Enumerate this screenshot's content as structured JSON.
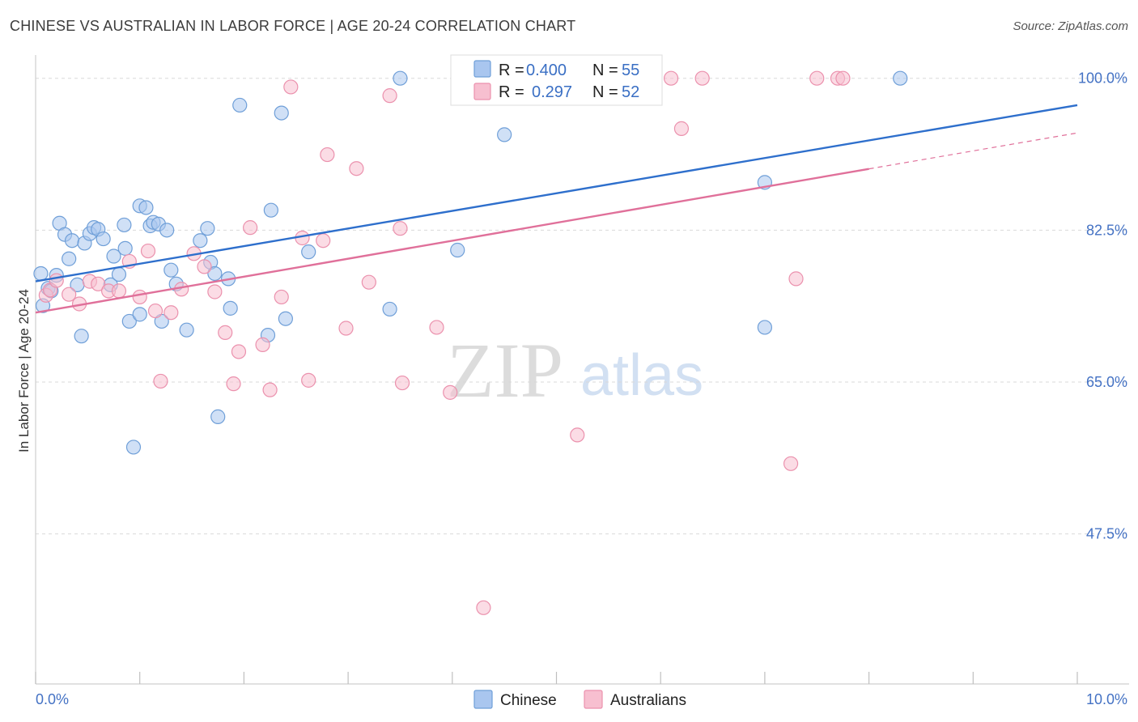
{
  "header": {
    "title": "CHINESE VS AUSTRALIAN IN LABOR FORCE | AGE 20-24 CORRELATION CHART",
    "source": "Source: ZipAtlas.com"
  },
  "watermark": {
    "part1": "ZIP",
    "part2": "atlas"
  },
  "legend": {
    "r_label": "R =",
    "n_label": "N =",
    "rows": [
      {
        "r": "0.400",
        "n": "55"
      },
      {
        "r": "0.297",
        "n": "52"
      }
    ]
  },
  "colors": {
    "chinese_fill": "#a9c6ef",
    "chinese_stroke": "#6f9fd8",
    "chinese_line": "#2e6fcc",
    "australian_fill": "#f7bfd0",
    "australian_stroke": "#eb91ad",
    "australian_line": "#e0709a",
    "grid": "#d9d9d9",
    "tick_text": "#4472c4"
  },
  "chart_data": {
    "type": "scatter",
    "title": "CHINESE VS AUSTRALIAN IN LABOR FORCE | AGE 20-24 CORRELATION CHART",
    "xlabel": "",
    "ylabel": "In Labor Force | Age 20-24",
    "xlim": [
      0,
      10
    ],
    "ylim": [
      32.5,
      101.5
    ],
    "x_tick_labels": [
      "0.0%",
      "10.0%"
    ],
    "y_ticks": [
      47.5,
      65.0,
      82.5,
      100.0
    ],
    "y_tick_labels": [
      "47.5%",
      "65.0%",
      "82.5%",
      "100.0%"
    ],
    "grid": true,
    "legend_position": "top-center",
    "series": [
      {
        "name": "Chinese",
        "r": 0.4,
        "n": 55,
        "trend": {
          "x0": 0.0,
          "y0": 76.6,
          "x1": 10.0,
          "y1": 96.9,
          "dash_from": null
        },
        "points": [
          [
            0.05,
            77.5
          ],
          [
            0.07,
            73.8
          ],
          [
            0.12,
            75.8
          ],
          [
            0.15,
            75.5
          ],
          [
            0.2,
            77.3
          ],
          [
            0.23,
            83.3
          ],
          [
            0.28,
            82.0
          ],
          [
            0.32,
            79.2
          ],
          [
            0.35,
            81.3
          ],
          [
            0.4,
            76.2
          ],
          [
            0.44,
            70.3
          ],
          [
            0.47,
            81.0
          ],
          [
            0.52,
            82.1
          ],
          [
            0.56,
            82.8
          ],
          [
            0.6,
            82.6
          ],
          [
            0.65,
            81.5
          ],
          [
            0.72,
            76.2
          ],
          [
            0.75,
            79.5
          ],
          [
            0.8,
            77.4
          ],
          [
            0.85,
            83.1
          ],
          [
            0.86,
            80.4
          ],
          [
            0.9,
            72.0
          ],
          [
            0.94,
            57.5
          ],
          [
            1.0,
            72.8
          ],
          [
            1.0,
            85.3
          ],
          [
            1.06,
            85.1
          ],
          [
            1.1,
            83.0
          ],
          [
            1.13,
            83.4
          ],
          [
            1.18,
            83.2
          ],
          [
            1.21,
            72.0
          ],
          [
            1.26,
            82.5
          ],
          [
            1.3,
            77.9
          ],
          [
            1.35,
            76.3
          ],
          [
            1.45,
            71.0
          ],
          [
            1.58,
            81.3
          ],
          [
            1.65,
            82.7
          ],
          [
            1.68,
            78.8
          ],
          [
            1.72,
            77.5
          ],
          [
            1.75,
            61.0
          ],
          [
            1.85,
            76.9
          ],
          [
            1.87,
            73.5
          ],
          [
            1.96,
            96.9
          ],
          [
            2.23,
            70.4
          ],
          [
            2.26,
            84.8
          ],
          [
            2.36,
            96.0
          ],
          [
            2.4,
            72.3
          ],
          [
            2.62,
            80.0
          ],
          [
            3.4,
            73.4
          ],
          [
            3.5,
            100.0
          ],
          [
            4.1,
            100.0
          ],
          [
            4.05,
            80.2
          ],
          [
            4.5,
            93.5
          ],
          [
            7.0,
            71.3
          ],
          [
            7.0,
            88.0
          ],
          [
            8.3,
            100.0
          ]
        ]
      },
      {
        "name": "Australians",
        "r": 0.297,
        "n": 52,
        "trend": {
          "x0": 0.0,
          "y0": 73.0,
          "x1": 10.0,
          "y1": 93.7,
          "dash_from": 8.0
        },
        "points": [
          [
            0.1,
            75.0
          ],
          [
            0.14,
            75.6
          ],
          [
            0.2,
            76.7
          ],
          [
            0.32,
            75.1
          ],
          [
            0.42,
            74.0
          ],
          [
            0.52,
            76.6
          ],
          [
            0.6,
            76.3
          ],
          [
            0.7,
            75.5
          ],
          [
            0.8,
            75.5
          ],
          [
            0.9,
            78.9
          ],
          [
            1.0,
            74.8
          ],
          [
            1.08,
            80.1
          ],
          [
            1.15,
            73.2
          ],
          [
            1.2,
            65.1
          ],
          [
            1.3,
            73.0
          ],
          [
            1.4,
            75.7
          ],
          [
            1.52,
            79.8
          ],
          [
            1.62,
            78.3
          ],
          [
            1.72,
            75.4
          ],
          [
            1.82,
            70.7
          ],
          [
            1.9,
            64.8
          ],
          [
            1.95,
            68.5
          ],
          [
            2.06,
            82.8
          ],
          [
            2.18,
            69.3
          ],
          [
            2.25,
            64.1
          ],
          [
            2.36,
            74.8
          ],
          [
            2.45,
            99.0
          ],
          [
            2.56,
            81.6
          ],
          [
            2.62,
            65.2
          ],
          [
            2.76,
            81.3
          ],
          [
            2.8,
            91.2
          ],
          [
            2.98,
            71.2
          ],
          [
            3.08,
            89.6
          ],
          [
            3.2,
            76.5
          ],
          [
            3.4,
            98.0
          ],
          [
            3.5,
            82.7
          ],
          [
            3.52,
            64.9
          ],
          [
            3.85,
            71.3
          ],
          [
            3.98,
            63.8
          ],
          [
            4.3,
            39.0
          ],
          [
            4.37,
            100.0
          ],
          [
            4.65,
            100.0
          ],
          [
            5.2,
            100.0
          ],
          [
            5.2,
            58.9
          ],
          [
            6.1,
            100.0
          ],
          [
            6.2,
            94.2
          ],
          [
            6.4,
            100.0
          ],
          [
            7.25,
            55.6
          ],
          [
            7.3,
            76.9
          ],
          [
            7.5,
            100.0
          ],
          [
            7.7,
            100.0
          ],
          [
            7.75,
            100.0
          ]
        ]
      }
    ]
  },
  "bottom_legend": {
    "items": [
      {
        "label": "Chinese"
      },
      {
        "label": "Australians"
      }
    ]
  }
}
